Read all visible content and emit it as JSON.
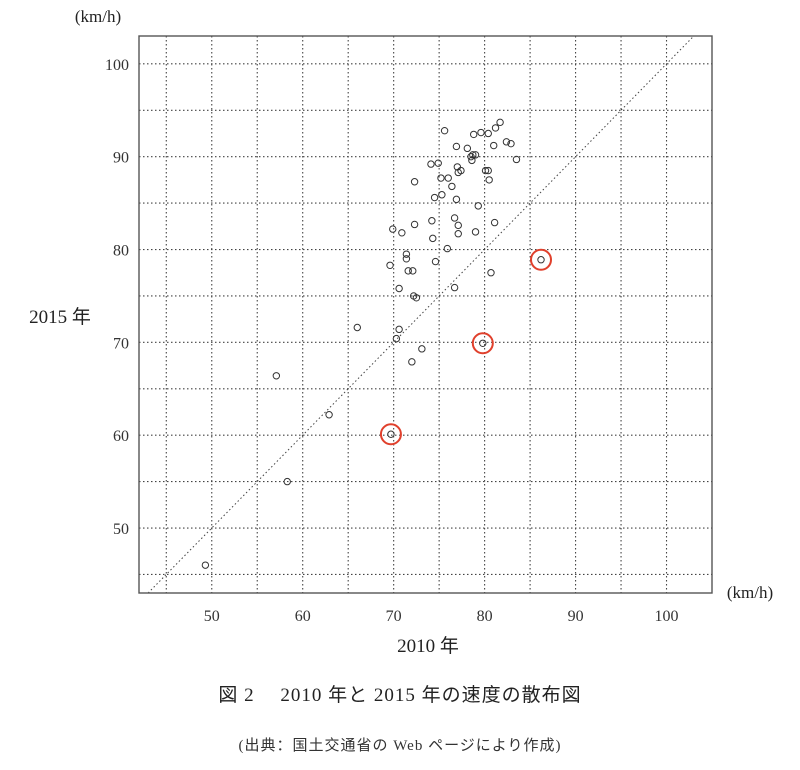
{
  "chart_data": {
    "type": "scatter",
    "xlabel": "2010 年",
    "ylabel": "2015 年",
    "x_unit": "(km/h)",
    "y_unit": "(km/h)",
    "xlim": [
      42,
      105
    ],
    "ylim": [
      43,
      103
    ],
    "xticks": [
      50,
      60,
      70,
      80,
      90,
      100
    ],
    "yticks": [
      50,
      60,
      70,
      80,
      90,
      100
    ],
    "grid": true,
    "reference_line": "y = x",
    "series": [
      {
        "points": [
          [
            49.3,
            46.0
          ],
          [
            58.3,
            55.0
          ],
          [
            57.1,
            66.4
          ],
          [
            62.9,
            62.2
          ],
          [
            66.0,
            71.6
          ],
          [
            69.7,
            60.1
          ],
          [
            70.3,
            70.4
          ],
          [
            70.6,
            71.4
          ],
          [
            73.1,
            69.3
          ],
          [
            72.0,
            67.9
          ],
          [
            79.8,
            69.9
          ],
          [
            86.2,
            78.9
          ],
          [
            80.7,
            77.5
          ],
          [
            69.6,
            78.3
          ],
          [
            70.6,
            75.8
          ],
          [
            72.2,
            75.0
          ],
          [
            72.5,
            74.8
          ],
          [
            71.4,
            79.0
          ],
          [
            71.6,
            77.7
          ],
          [
            72.1,
            77.7
          ],
          [
            71.4,
            79.5
          ],
          [
            69.9,
            82.2
          ],
          [
            70.9,
            81.8
          ],
          [
            72.3,
            82.7
          ],
          [
            74.3,
            81.2
          ],
          [
            74.2,
            83.1
          ],
          [
            74.6,
            78.7
          ],
          [
            75.9,
            80.1
          ],
          [
            76.7,
            75.9
          ],
          [
            77.1,
            81.7
          ],
          [
            77.1,
            82.6
          ],
          [
            76.7,
            83.4
          ],
          [
            79.0,
            81.9
          ],
          [
            81.1,
            82.9
          ],
          [
            79.3,
            84.7
          ],
          [
            74.5,
            85.6
          ],
          [
            75.3,
            85.9
          ],
          [
            76.9,
            85.4
          ],
          [
            72.3,
            87.3
          ],
          [
            75.2,
            87.7
          ],
          [
            76.0,
            87.7
          ],
          [
            76.4,
            86.8
          ],
          [
            77.1,
            88.3
          ],
          [
            77.0,
            88.9
          ],
          [
            77.4,
            88.5
          ],
          [
            74.1,
            89.2
          ],
          [
            74.9,
            89.3
          ],
          [
            78.6,
            89.6
          ],
          [
            78.5,
            90.0
          ],
          [
            79.0,
            90.2
          ],
          [
            78.7,
            90.2
          ],
          [
            80.1,
            88.5
          ],
          [
            80.4,
            88.5
          ],
          [
            80.5,
            87.5
          ],
          [
            83.5,
            89.7
          ],
          [
            78.1,
            90.9
          ],
          [
            76.9,
            91.1
          ],
          [
            81.0,
            91.2
          ],
          [
            82.4,
            91.6
          ],
          [
            82.9,
            91.4
          ],
          [
            75.6,
            92.8
          ],
          [
            78.8,
            92.4
          ],
          [
            79.6,
            92.6
          ],
          [
            80.4,
            92.5
          ],
          [
            81.2,
            93.1
          ],
          [
            81.7,
            93.7
          ]
        ]
      }
    ],
    "highlighted_points": [
      [
        69.7,
        60.1
      ],
      [
        79.8,
        69.9
      ],
      [
        86.2,
        78.9
      ]
    ],
    "colors": {
      "points": "#333333",
      "highlight": "#e0402c",
      "grid": "#444444",
      "axes": "#555555"
    }
  },
  "caption": "図 2　 2010 年と 2015 年の速度の散布図",
  "source": "(出典：国土交通省の Web ページにより作成)"
}
